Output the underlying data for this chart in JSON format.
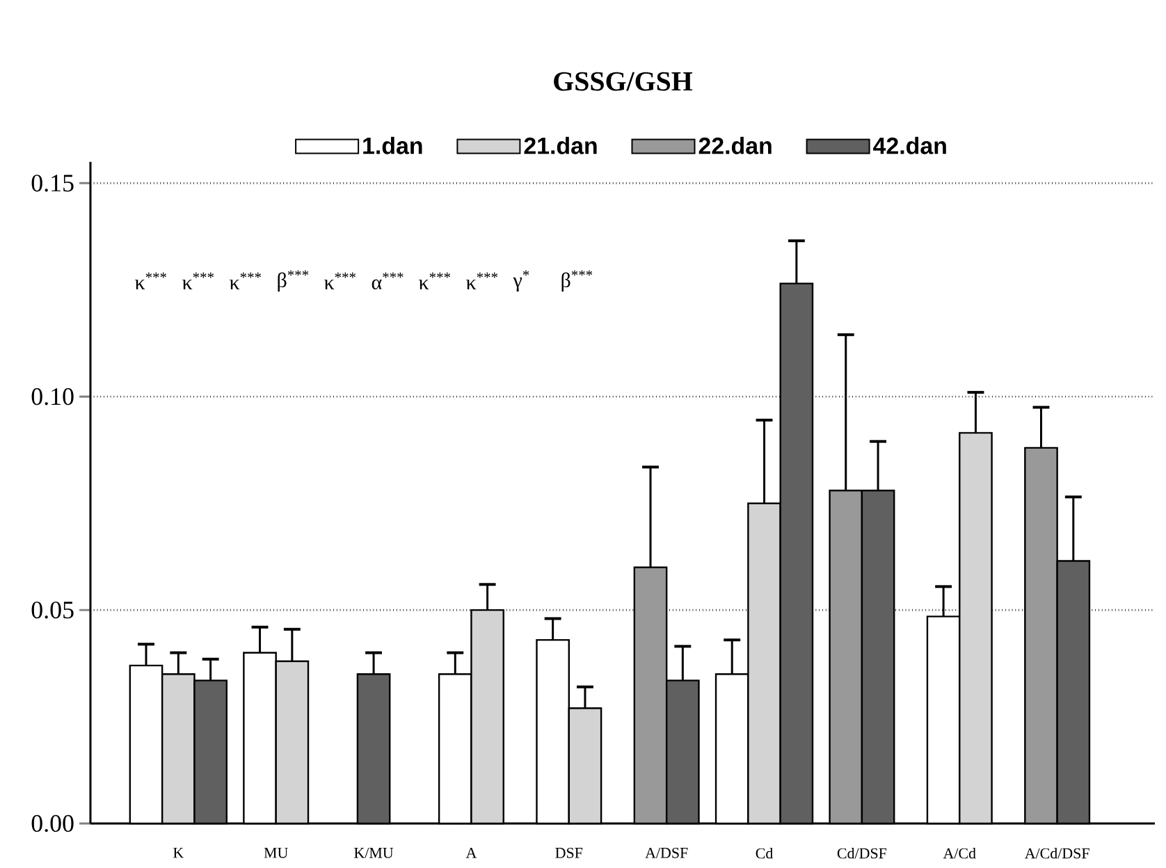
{
  "chart_data": {
    "type": "bar",
    "title": "GSSG/GSH",
    "categories": [
      "K",
      "MU",
      "K/MU",
      "A",
      "DSF",
      "A/DSF",
      "Cd",
      "Cd/DSF",
      "A/Cd",
      "A/Cd/DSF"
    ],
    "series": [
      {
        "name": "1.dan",
        "color": "#ffffff",
        "values": [
          0.037,
          0.04,
          null,
          0.035,
          0.043,
          null,
          0.035,
          null,
          0.0485,
          null
        ],
        "errors": [
          0.005,
          0.006,
          null,
          0.005,
          0.005,
          null,
          0.008,
          null,
          0.007,
          null
        ]
      },
      {
        "name": "21.dan",
        "color": "#d3d3d3",
        "values": [
          0.035,
          0.038,
          null,
          0.05,
          0.027,
          null,
          0.075,
          null,
          0.0915,
          null
        ],
        "errors": [
          0.005,
          0.0075,
          null,
          0.006,
          0.005,
          null,
          0.0195,
          null,
          0.0095,
          null
        ]
      },
      {
        "name": "22.dan",
        "color": "#999999",
        "values": [
          null,
          null,
          null,
          null,
          null,
          0.06,
          null,
          0.078,
          null,
          0.088
        ],
        "errors": [
          null,
          null,
          null,
          null,
          null,
          0.0235,
          null,
          0.0365,
          null,
          0.0095
        ]
      },
      {
        "name": "42.dan",
        "color": "#606060",
        "values": [
          0.0335,
          null,
          0.035,
          null,
          null,
          0.0335,
          0.1265,
          0.078,
          null,
          0.0615
        ],
        "errors": [
          0.005,
          null,
          0.005,
          null,
          null,
          0.008,
          0.01,
          0.0115,
          null,
          0.015
        ]
      }
    ],
    "ylim": [
      0,
      0.155
    ],
    "yticks": [
      {
        "value": 0,
        "label": "0.00"
      },
      {
        "value": 0.05,
        "label": "0.05"
      },
      {
        "value": 0.1,
        "label": "0.10"
      },
      {
        "value": 0.15,
        "label": "0.15"
      }
    ],
    "grid": "y",
    "legend": "top",
    "annotations": [
      "κ$^{***}$",
      "κ$^{***}$",
      "κ$^{***}$",
      "β$^{***}$",
      "κ$^{***}$",
      "α$^{***}$",
      "κ$^{***}$",
      "κ$^{***}$",
      "γ$^{*}$",
      "β$^{***}$"
    ]
  }
}
